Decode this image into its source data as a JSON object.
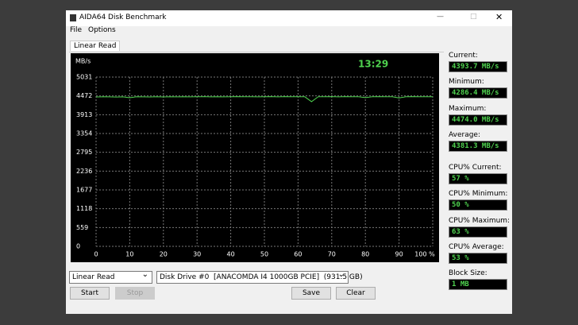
{
  "window": {
    "title": "AIDA64 Disk Benchmark"
  },
  "menu": [
    "File",
    "Options"
  ],
  "tab": "Linear Read",
  "chart_data": {
    "type": "line",
    "unit_label": "MB/s",
    "time": "13:29",
    "color": "#4fd24f",
    "grid": true,
    "x": [
      0,
      2,
      4,
      6,
      8,
      10,
      12,
      14,
      16,
      18,
      20,
      22,
      24,
      26,
      28,
      30,
      32,
      34,
      36,
      38,
      40,
      42,
      44,
      46,
      48,
      50,
      52,
      54,
      56,
      58,
      60,
      62,
      64,
      66,
      68,
      70,
      72,
      74,
      76,
      78,
      80,
      82,
      84,
      86,
      88,
      90,
      92,
      94,
      96,
      98,
      100
    ],
    "values": [
      4440,
      4445,
      4442,
      4438,
      4444,
      4418,
      4446,
      4443,
      4441,
      4445,
      4440,
      4447,
      4444,
      4446,
      4442,
      4445,
      4448,
      4443,
      4446,
      4444,
      4447,
      4449,
      4445,
      4447,
      4443,
      4446,
      4448,
      4444,
      4449,
      4446,
      4447,
      4445,
      4300,
      4447,
      4446,
      4449,
      4444,
      4448,
      4446,
      4447,
      4420,
      4446,
      4448,
      4445,
      4447,
      4410,
      4446,
      4449,
      4445,
      4447,
      4446
    ],
    "xlim": [
      0,
      100
    ],
    "ylim": [
      0,
      5031
    ],
    "xticks": [
      0,
      10,
      20,
      30,
      40,
      50,
      60,
      70,
      80,
      90,
      {
        "value": 100,
        "label": "100 %"
      }
    ],
    "yticks": [
      0,
      559,
      1118,
      1677,
      2236,
      2795,
      3354,
      3913,
      4472,
      5031
    ]
  },
  "stats": [
    {
      "label": "Current:",
      "value": "4393.7 MB/s"
    },
    {
      "label": "Minimum:",
      "value": "4286.4 MB/s"
    },
    {
      "label": "Maximum:",
      "value": "4474.0 MB/s"
    },
    {
      "label": "Average:",
      "value": "4381.3 MB/s"
    },
    {
      "label": "CPU% Current:",
      "value": "57 %"
    },
    {
      "label": "CPU% Minimum:",
      "value": "50 %"
    },
    {
      "label": "CPU% Maximum:",
      "value": "63 %"
    },
    {
      "label": "CPU% Average:",
      "value": "53 %"
    },
    {
      "label": "Block Size:",
      "value": "1 MB"
    }
  ],
  "controls": {
    "test": "Linear Read",
    "drive": "Disk Drive #0  [ANACOMDA I4 1000GB PCIE]  (931.5 GB)",
    "buttons": [
      "Start",
      "Stop",
      "Save",
      "Clear"
    ]
  }
}
